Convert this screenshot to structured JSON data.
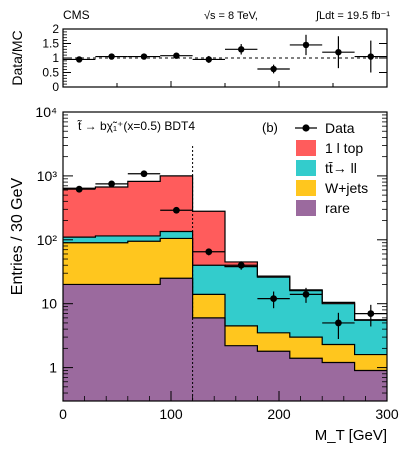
{
  "header": {
    "experiment": "CMS",
    "energy": "√s = 8 TeV,",
    "lumi": "∫Ldt = 19.5 fb⁻¹"
  },
  "chart_data": [
    {
      "type": "scatter",
      "ylabel": "Data/MC",
      "xlim": [
        0,
        300
      ],
      "ylim": [
        0,
        2
      ],
      "yticks": [
        "0",
        "0.5",
        "1",
        "1.5",
        "2"
      ],
      "reference_line": 1,
      "x": [
        15,
        45,
        75,
        105,
        135,
        165,
        195,
        225,
        255,
        285
      ],
      "xerr": 15,
      "y": [
        0.95,
        1.05,
        1.05,
        1.08,
        0.95,
        1.3,
        0.62,
        1.45,
        1.2,
        1.05
      ],
      "yerr": [
        0.08,
        0.06,
        0.05,
        0.08,
        0.12,
        0.18,
        0.15,
        0.35,
        0.55,
        0.55
      ]
    },
    {
      "type": "area",
      "stacked_histogram": true,
      "annotation": "t̃ → bχ̃₁⁺(x=0.5) BDT4",
      "panel_label": "(b)",
      "xlabel": "M_T [GeV]",
      "ylabel": "Entries / 30 GeV",
      "log_y": true,
      "xlim": [
        0,
        300
      ],
      "ylim": [
        0.3,
        10000
      ],
      "xticks": [
        "0",
        "100",
        "200",
        "300"
      ],
      "yticks": [
        "1",
        "10",
        "10²",
        "10³",
        "10⁴"
      ],
      "bin_edges": [
        0,
        30,
        60,
        90,
        120,
        150,
        180,
        210,
        240,
        270,
        300
      ],
      "cut_line_x": 120,
      "legend_position": "top-right",
      "series": [
        {
          "name": "rare",
          "color": "#9b6a9e",
          "values": [
            20,
            20,
            20,
            25,
            6,
            2.2,
            1.8,
            1.4,
            1.2,
            0.9,
            0.7
          ]
        },
        {
          "name": "W+jets",
          "color": "#ffc61e",
          "values": [
            90,
            90,
            95,
            105,
            14,
            4.5,
            3.5,
            3.0,
            2.3,
            1.6,
            1.7
          ]
        },
        {
          "name": "tt̄→ ll",
          "color": "#33cccc",
          "values": [
            110,
            115,
            115,
            135,
            40,
            38,
            26,
            16,
            10,
            5.5,
            5.5
          ]
        },
        {
          "name": "1 l top",
          "color": "#ff5c5c",
          "values": [
            640,
            670,
            820,
            1000,
            280,
            45,
            27,
            16.5,
            10.5,
            5.6,
            5.6
          ]
        }
      ],
      "data": {
        "name": "Data",
        "x": [
          15,
          45,
          75,
          105,
          135,
          165,
          195,
          225,
          255,
          285
        ],
        "y": [
          620,
          750,
          1080,
          290,
          65,
          40,
          12,
          14,
          5,
          7
        ],
        "yerr_low": [
          25,
          27,
          33,
          17,
          8,
          6,
          3.5,
          3.7,
          2.2,
          2.6
        ],
        "yerr_high": [
          25,
          27,
          33,
          17,
          8,
          6,
          3.5,
          3.7,
          2.2,
          2.6
        ]
      }
    }
  ]
}
